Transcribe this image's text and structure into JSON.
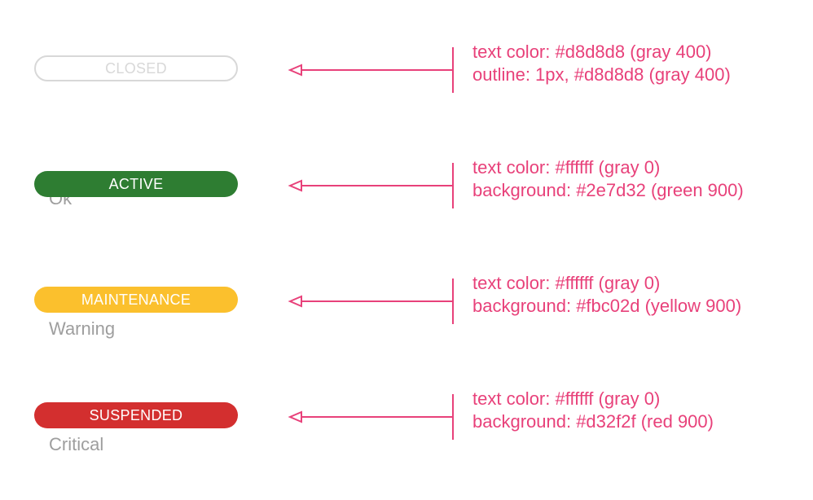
{
  "accent_color": "#e8417a",
  "states": [
    {
      "badge_label": "CLOSED",
      "style": "outline",
      "text_color": "#d8d8d8",
      "border_color": "#d8d8d8",
      "background": "#ffffff",
      "sub_label": "",
      "spec_line_1": "text color: #d8d8d8 (gray 400)",
      "spec_line_2": "outline: 1px, #d8d8d8 (gray 400)"
    },
    {
      "badge_label": "ACTIVE",
      "style": "filled",
      "text_color": "#ffffff",
      "background": "#2e7d32",
      "sub_label": "Ok",
      "spec_line_1": "text color: #ffffff (gray 0)",
      "spec_line_2": "background: #2e7d32 (green 900)"
    },
    {
      "badge_label": "MAINTENANCE",
      "style": "filled",
      "text_color": "#ffffff",
      "background": "#fbc02d",
      "sub_label": "Warning",
      "spec_line_1": "text color: #ffffff (gray 0)",
      "spec_line_2": "background: #fbc02d (yellow 900)"
    },
    {
      "badge_label": "SUSPENDED",
      "style": "filled",
      "text_color": "#ffffff",
      "background": "#d32f2f",
      "sub_label": "Critical",
      "spec_line_1": "text color: #ffffff (gray 0)",
      "spec_line_2": "background: #d32f2f (red 900)"
    }
  ]
}
